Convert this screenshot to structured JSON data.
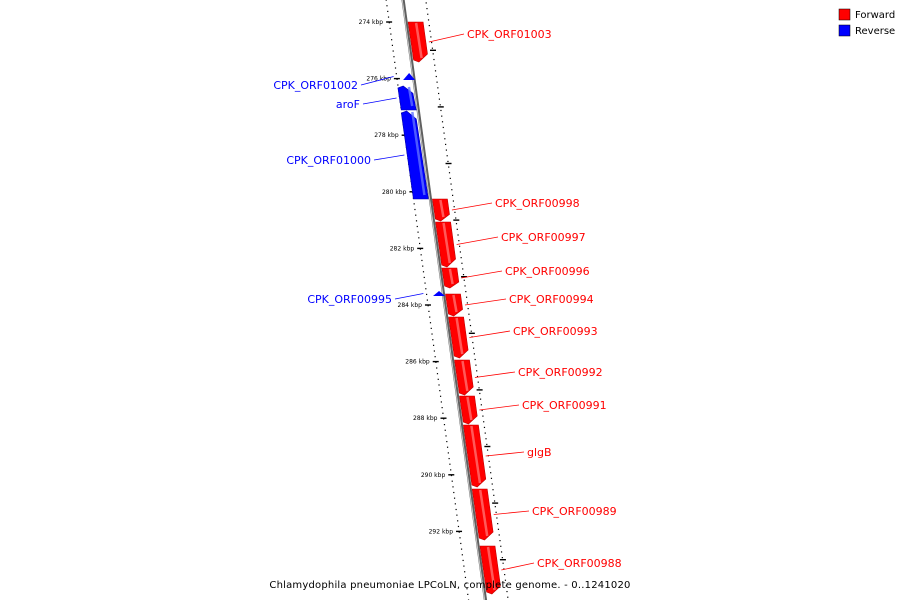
{
  "caption": "Chlamydophila pneumoniae LPCoLN, complete genome. - 0..1241020",
  "legend": [
    {
      "name": "Forward",
      "color": "#ff0000"
    },
    {
      "name": "Reverse",
      "color": "#0000ff"
    }
  ],
  "backbone_color": "#888888",
  "tick_labels": [
    "274 kbp",
    "276 kbp",
    "278 kbp",
    "280 kbp",
    "282 kbp",
    "284 kbp",
    "286 kbp",
    "288 kbp",
    "290 kbp",
    "292 kbp"
  ],
  "features": [
    {
      "label": "CPK_ORF01003",
      "strand": "forward"
    },
    {
      "label": "CPK_ORF01002",
      "strand": "reverse"
    },
    {
      "label": "aroF",
      "strand": "reverse"
    },
    {
      "label": "CPK_ORF01000",
      "strand": "reverse"
    },
    {
      "label": "CPK_ORF00998",
      "strand": "forward"
    },
    {
      "label": "CPK_ORF00997",
      "strand": "forward"
    },
    {
      "label": "CPK_ORF00996",
      "strand": "forward"
    },
    {
      "label": "CPK_ORF00995",
      "strand": "reverse"
    },
    {
      "label": "CPK_ORF00994",
      "strand": "forward"
    },
    {
      "label": "CPK_ORF00993",
      "strand": "forward"
    },
    {
      "label": "CPK_ORF00992",
      "strand": "forward"
    },
    {
      "label": "CPK_ORF00991",
      "strand": "forward"
    },
    {
      "label": "glgB",
      "strand": "forward"
    },
    {
      "label": "CPK_ORF00989",
      "strand": "forward"
    },
    {
      "label": "CPK_ORF00988",
      "strand": "forward"
    }
  ]
}
